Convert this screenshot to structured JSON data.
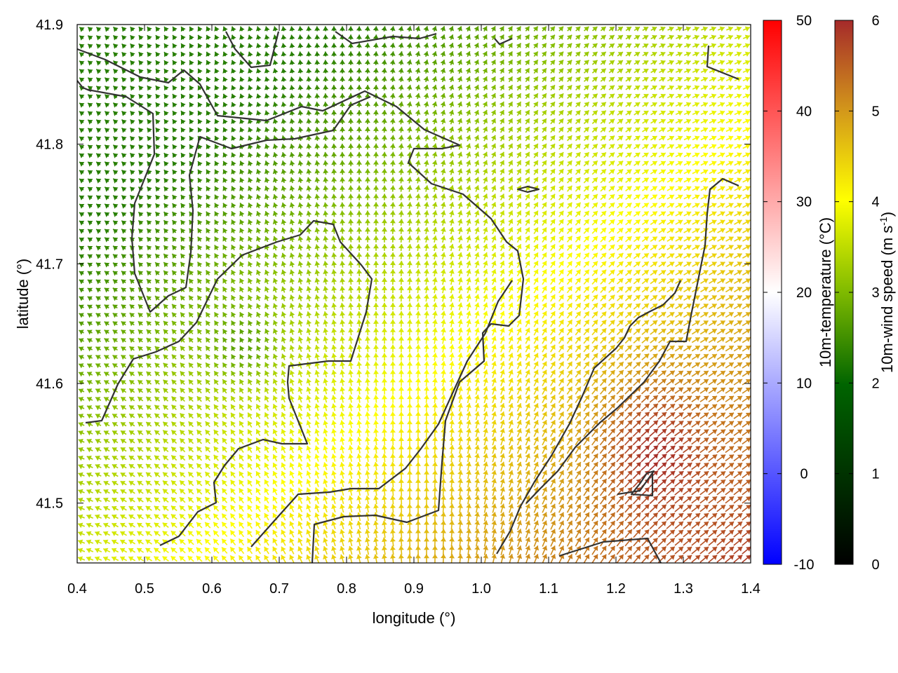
{
  "chart_data": {
    "type": "vector-field",
    "xlabel": "longitude (°)",
    "ylabel": "latitude (°)",
    "xlim": [
      0.4,
      1.4
    ],
    "ylim": [
      41.45,
      41.9
    ],
    "xticks": [
      "0.4",
      "0.5",
      "0.6",
      "0.7",
      "0.8",
      "0.9",
      "1.0",
      "1.1",
      "1.2",
      "1.3",
      "1.4"
    ],
    "yticks": [
      "41.5",
      "41.6",
      "41.7",
      "41.8",
      "41.9"
    ],
    "contour_color": "#333333",
    "colorbars": [
      {
        "label": "10m-temperature (°C)",
        "ticks": [
          "-10",
          "0",
          "10",
          "20",
          "30",
          "40",
          "50"
        ],
        "range": [
          -10,
          50
        ],
        "colors": [
          "#0000ff",
          "#ffffff",
          "#ff0000"
        ]
      },
      {
        "label": "10m-wind speed (m s",
        "label_sup": "-1",
        "label_end": ")",
        "ticks": [
          "0",
          "1",
          "2",
          "3",
          "4",
          "5",
          "6"
        ],
        "range": [
          0,
          6
        ],
        "colors": [
          "#000000",
          "#006400",
          "#7fba00",
          "#ffff00",
          "#d49a1a",
          "#a52a2a"
        ]
      }
    ]
  }
}
